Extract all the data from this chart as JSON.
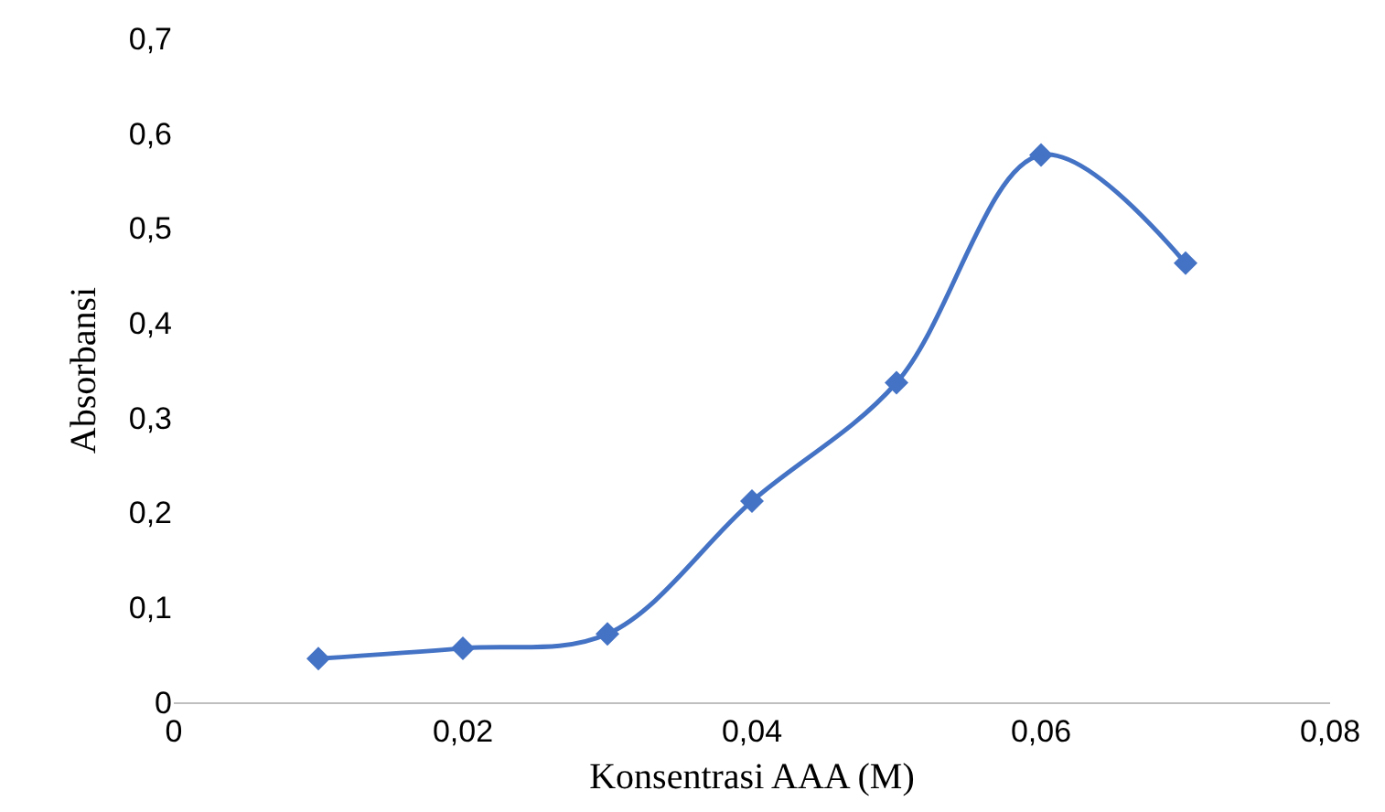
{
  "chart_data": {
    "type": "line",
    "xlabel": "Konsentrasi AAA (M)",
    "ylabel": "Absorbansi",
    "x": [
      0.01,
      0.02,
      0.03,
      0.04,
      0.05,
      0.06,
      0.07
    ],
    "series": [
      {
        "color": "#4472c4",
        "values": [
          0.046,
          0.057,
          0.072,
          0.212,
          0.337,
          0.577,
          0.463
        ]
      }
    ],
    "xlim": [
      0,
      0.08
    ],
    "xticks": [
      {
        "value": 0,
        "label": "0"
      },
      {
        "value": 0.02,
        "label": "0,02"
      },
      {
        "value": 0.04,
        "label": "0,04"
      },
      {
        "value": 0.06,
        "label": "0,06"
      },
      {
        "value": 0.08,
        "label": "0,08"
      }
    ],
    "ylim": [
      0,
      0.7
    ],
    "yticks": [
      {
        "value": 0,
        "label": "0"
      },
      {
        "value": 0.1,
        "label": "0,1"
      },
      {
        "value": 0.2,
        "label": "0,2"
      },
      {
        "value": 0.3,
        "label": "0,3"
      },
      {
        "value": 0.4,
        "label": "0,4"
      },
      {
        "value": 0.5,
        "label": "0,5"
      },
      {
        "value": 0.6,
        "label": "0,6"
      },
      {
        "value": 0.7,
        "label": "0,7"
      }
    ],
    "grid": false,
    "marker": "diamond",
    "line_style": "solid"
  }
}
